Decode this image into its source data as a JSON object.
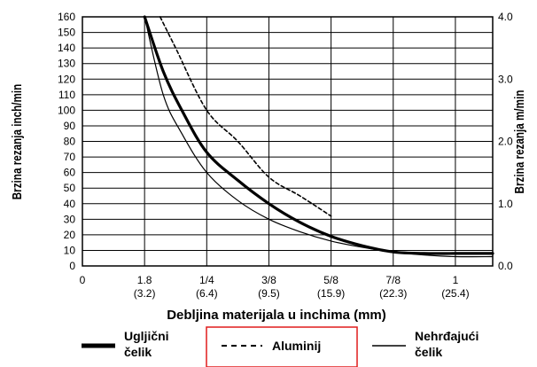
{
  "chart_data": {
    "type": "line",
    "xlabel": "Debljina materijala u inchima (mm)",
    "ylabel_left": "Brzina rezanja inch/min",
    "ylabel_right": "Brzina rezanja m/min",
    "ylim_left": [
      0,
      160
    ],
    "ylim_right": [
      0.0,
      4.0
    ],
    "y_ticks_left": [
      "0",
      "10",
      "20",
      "30",
      "40",
      "50",
      "60",
      "70",
      "80",
      "90",
      "100",
      "110",
      "120",
      "130",
      "140",
      "150",
      "160"
    ],
    "y_ticks_right": [
      "0.0",
      "1.0",
      "2.0",
      "3.0",
      "4.0"
    ],
    "x_tick_labels": [
      {
        "top": "0",
        "bottom": ""
      },
      {
        "top": "1.8",
        "bottom": "(3.2)"
      },
      {
        "top": "1/4",
        "bottom": "(6.4)"
      },
      {
        "top": "3/8",
        "bottom": "(9.5)"
      },
      {
        "top": "5/8",
        "bottom": "(15.9)"
      },
      {
        "top": "7/8",
        "bottom": "(22.3)"
      },
      {
        "top": "1",
        "bottom": "(25.4)"
      }
    ],
    "x_positions": [
      0,
      1,
      2,
      3,
      4,
      5,
      6
    ],
    "xlim": [
      0,
      6.6
    ],
    "grid": true,
    "legend_position": "bottom",
    "series": [
      {
        "name": "Ugljični čelik",
        "style": "thick",
        "color": "#000000",
        "x": [
          1.0,
          1.3,
          1.6,
          2.0,
          2.5,
          3.0,
          3.5,
          4.0,
          4.5,
          5.0,
          5.5,
          6.0,
          6.6
        ],
        "y": [
          160,
          125,
          100,
          73,
          55,
          40,
          28,
          19,
          13,
          9,
          8,
          8,
          8
        ]
      },
      {
        "name": "Aluminij",
        "style": "dashed",
        "color": "#000000",
        "x": [
          1.25,
          1.5,
          2.0,
          2.5,
          3.0,
          3.5,
          4.0
        ],
        "y": [
          160,
          140,
          100,
          80,
          57,
          45,
          32
        ]
      },
      {
        "name": "Nehrđajući čelik",
        "style": "thin",
        "color": "#000000",
        "x": [
          1.0,
          1.3,
          1.6,
          2.0,
          2.5,
          3.0,
          3.5,
          4.0,
          4.5,
          5.0,
          5.5,
          6.0,
          6.6
        ],
        "y": [
          160,
          110,
          85,
          60,
          42,
          30,
          22,
          16,
          12,
          9,
          7,
          6,
          6
        ]
      }
    ],
    "legend": [
      {
        "line1": "Ugljični",
        "line2": "čelik"
      },
      {
        "line1": "Aluminij",
        "line2": ""
      },
      {
        "line1": "Nehrđajući",
        "line2": "čelik"
      }
    ],
    "highlight_color": "#e01b1b"
  }
}
